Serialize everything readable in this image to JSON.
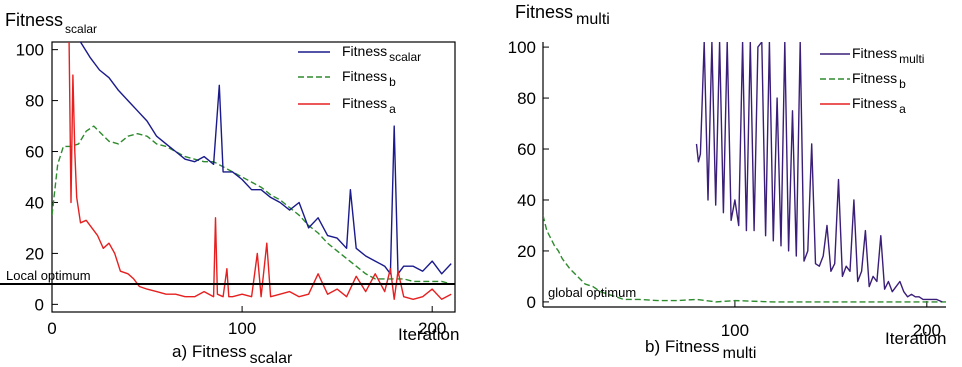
{
  "chart_data": [
    {
      "id": "a",
      "type": "line",
      "title": {
        "main": "Fitness",
        "sub": "scalar"
      },
      "caption": {
        "main": "a) Fitness",
        "sub": "scalar"
      },
      "xlabel": "Iteration",
      "ylabel": "",
      "xlim": [
        0,
        212
      ],
      "ylim": [
        -3,
        103
      ],
      "xticks": [
        0,
        100,
        200
      ],
      "yticks": [
        0,
        20,
        40,
        60,
        80,
        100
      ],
      "legend_position": "top-right",
      "reference_line": {
        "y": 8,
        "label": "Local optimum"
      },
      "series": [
        {
          "name": "Fitness",
          "sub": "scalar",
          "color": "#1a1a8c",
          "dash": "solid",
          "x": [
            15,
            20,
            25,
            30,
            35,
            40,
            45,
            50,
            55,
            60,
            65,
            70,
            75,
            80,
            85,
            88,
            90,
            95,
            100,
            105,
            110,
            115,
            120,
            125,
            130,
            135,
            140,
            145,
            150,
            155,
            157,
            160,
            165,
            170,
            175,
            178,
            180,
            182,
            185,
            190,
            195,
            200,
            205,
            210
          ],
          "y": [
            103,
            97,
            92,
            89,
            84,
            80,
            76,
            72,
            66,
            63,
            60,
            57,
            56,
            58,
            55,
            86,
            52,
            52,
            49,
            45,
            45,
            42,
            40,
            37,
            40,
            30,
            34,
            27,
            26,
            22,
            45,
            22,
            19,
            17,
            15,
            12,
            70,
            12,
            15,
            15,
            13,
            17,
            12,
            16
          ]
        },
        {
          "name": "Fitness",
          "sub": "b",
          "color": "#2e8b2e",
          "dash": "dashed",
          "x": [
            0,
            3,
            6,
            10,
            14,
            18,
            22,
            26,
            30,
            35,
            40,
            45,
            50,
            55,
            60,
            65,
            70,
            75,
            80,
            85,
            90,
            95,
            100,
            105,
            110,
            115,
            120,
            125,
            130,
            135,
            140,
            145,
            150,
            155,
            160,
            165,
            170,
            175,
            180,
            185,
            190,
            195,
            200,
            205,
            210
          ],
          "y": [
            35,
            55,
            62,
            62,
            63,
            68,
            70,
            67,
            64,
            63,
            66,
            67,
            66,
            63,
            62,
            60,
            58,
            57,
            56,
            56,
            54,
            52,
            50,
            48,
            46,
            43,
            41,
            38,
            35,
            31,
            28,
            24,
            21,
            18,
            15,
            12,
            10,
            10,
            10,
            10,
            9,
            9,
            9,
            9,
            8
          ]
        },
        {
          "name": "Fitness",
          "sub": "a",
          "color": "#e62020",
          "dash": "solid",
          "x": [
            9,
            10,
            11,
            12,
            13,
            15,
            18,
            21,
            24,
            27,
            30,
            33,
            36,
            40,
            43,
            46,
            50,
            55,
            60,
            65,
            70,
            75,
            80,
            85,
            86,
            87,
            90,
            92,
            93,
            95,
            100,
            105,
            108,
            110,
            113,
            115,
            120,
            125,
            130,
            135,
            140,
            145,
            150,
            155,
            160,
            165,
            170,
            175,
            178,
            180,
            182,
            185,
            190,
            195,
            200,
            205,
            210
          ],
          "y": [
            103,
            40,
            90,
            60,
            42,
            32,
            33,
            30,
            27,
            22,
            24,
            20,
            13,
            12,
            10,
            7,
            6,
            5,
            4,
            4,
            3,
            3,
            5,
            3,
            34,
            4,
            3,
            14,
            3,
            3,
            4,
            3,
            20,
            3,
            24,
            3,
            4,
            5,
            3,
            4,
            12,
            4,
            6,
            3,
            11,
            5,
            12,
            5,
            14,
            2,
            13,
            3,
            2,
            3,
            6,
            2,
            4
          ]
        }
      ]
    },
    {
      "id": "b",
      "type": "line",
      "title": {
        "main": "Fitness",
        "sub": "multi"
      },
      "caption": {
        "main": "b) Fitness",
        "sub": "multi"
      },
      "xlabel": "Iteration",
      "ylabel": "",
      "xlim": [
        0,
        210
      ],
      "ylim": [
        -2,
        102
      ],
      "xticks": [
        100,
        200
      ],
      "yticks": [
        0,
        20,
        40,
        60,
        80,
        100
      ],
      "legend_position": "top-right",
      "reference_line": {
        "y": 0,
        "label": "global optimum"
      },
      "series": [
        {
          "name": "Fitness",
          "sub": "multi",
          "color": "#3a1e78",
          "dash": "solid",
          "x": [
            80,
            81,
            82,
            84,
            86,
            88,
            90,
            92,
            94,
            96,
            98,
            100,
            102,
            104,
            106,
            108,
            110,
            112,
            114,
            116,
            118,
            120,
            122,
            124,
            126,
            128,
            130,
            132,
            134,
            136,
            138,
            140,
            142,
            144,
            146,
            148,
            150,
            152,
            154,
            156,
            158,
            160,
            162,
            164,
            166,
            168,
            170,
            172,
            174,
            176,
            178,
            180,
            182,
            184,
            186,
            188,
            190,
            192,
            194,
            196,
            198,
            200,
            202,
            205,
            208
          ],
          "y": [
            62,
            55,
            58,
            102,
            40,
            102,
            38,
            102,
            35,
            102,
            32,
            40,
            30,
            102,
            28,
            102,
            28,
            100,
            102,
            26,
            102,
            24,
            80,
            22,
            102,
            20,
            75,
            18,
            102,
            16,
            20,
            62,
            15,
            14,
            18,
            30,
            12,
            15,
            48,
            10,
            14,
            12,
            40,
            8,
            12,
            28,
            6,
            10,
            8,
            26,
            5,
            8,
            4,
            6,
            8,
            4,
            2,
            3,
            2,
            2,
            1,
            1,
            1,
            1,
            0
          ]
        },
        {
          "name": "Fitness",
          "sub": "b",
          "color": "#2e8b2e",
          "dash": "dashed",
          "x": [
            0,
            2,
            4,
            6,
            8,
            10,
            14,
            18,
            22,
            26,
            30,
            34,
            38,
            42,
            50,
            60,
            70,
            80,
            90,
            100,
            120,
            140,
            160,
            180,
            200,
            210
          ],
          "y": [
            34,
            28,
            25,
            22,
            20,
            17,
            13,
            10,
            7,
            6,
            4,
            3,
            2,
            1,
            1,
            0.5,
            0.5,
            1,
            0,
            0.5,
            0,
            0,
            0,
            0,
            0,
            0
          ]
        },
        {
          "name": "Fitness",
          "sub": "a",
          "color": "#e62020",
          "dash": "solid",
          "x": [],
          "y": []
        }
      ]
    }
  ]
}
